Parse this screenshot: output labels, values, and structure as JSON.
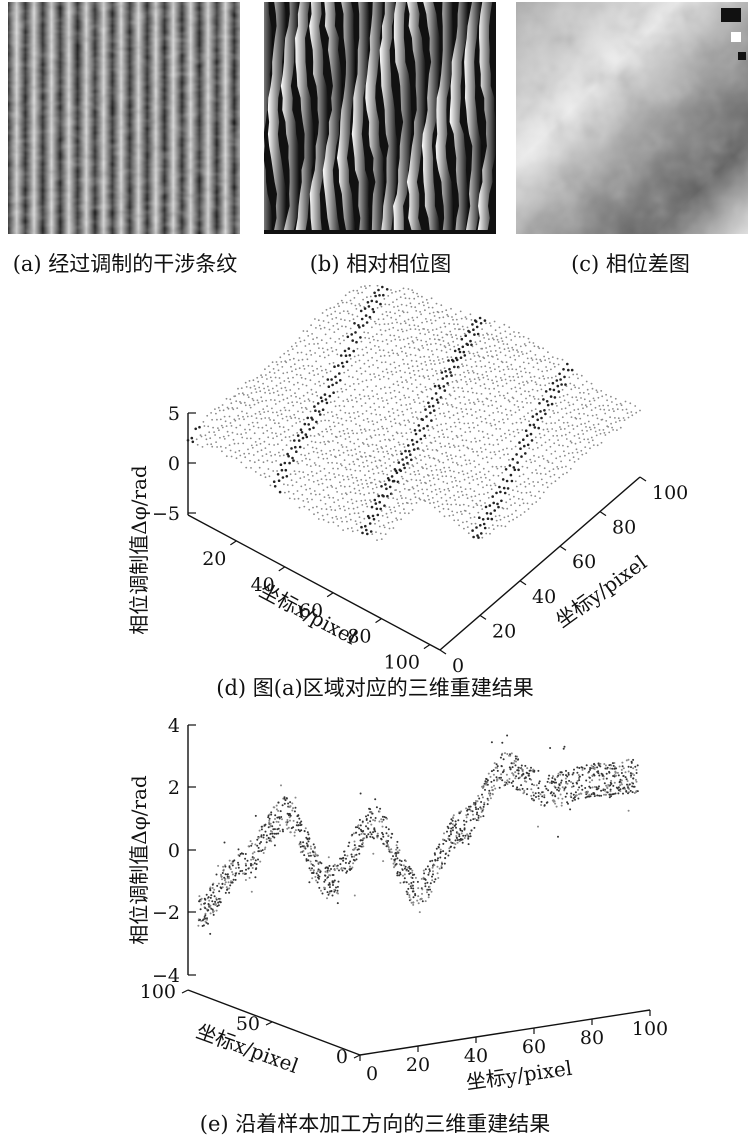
{
  "panels": {
    "a": {
      "caption": "(a) 经过调制的干涉条纹"
    },
    "b": {
      "caption": "(b) 相对相位图"
    },
    "c": {
      "caption": "(c) 相位差图"
    }
  },
  "plot_d": {
    "caption": "(d) 图(a)区域对应的三维重建结果",
    "zlabel": "相位调制值Δφ/rad",
    "xlabel": "坐标x/pixel",
    "ylabel": "坐标y/pixel",
    "z_ticks": [
      "5",
      "0",
      "−5"
    ],
    "x_ticks": [
      "20",
      "40",
      "60",
      "80",
      "100"
    ],
    "y_ticks": [
      "0",
      "20",
      "40",
      "60",
      "80",
      "100"
    ]
  },
  "plot_e": {
    "caption": "(e) 沿着样本加工方向的三维重建结果",
    "zlabel": "相位调制值Δφ/rad",
    "xlabel": "坐标x/pixel",
    "ylabel": "坐标y/pixel",
    "z_ticks": [
      "4",
      "2",
      "0",
      "−2",
      "−4"
    ],
    "x_ticks": [
      "100",
      "50",
      "0"
    ],
    "y_ticks": [
      "0",
      "20",
      "40",
      "60",
      "80",
      "100"
    ]
  },
  "chart_data": [
    {
      "type": "scatter",
      "panel": "d",
      "zlabel": "相位调制值Δφ/rad",
      "xlabel": "坐标x/pixel",
      "ylabel": "坐标y/pixel",
      "zlim": [
        -5,
        5
      ],
      "xlim": [
        0,
        100
      ],
      "ylim": [
        0,
        100
      ]
    },
    {
      "type": "scatter",
      "panel": "e",
      "zlabel": "相位调制值Δφ/rad",
      "xlabel": "坐标x/pixel",
      "ylabel": "坐标y/pixel",
      "zlim": [
        -4,
        4
      ],
      "xlim": [
        0,
        100
      ],
      "ylim": [
        0,
        100
      ],
      "y": [
        0,
        10,
        20,
        30,
        40,
        50,
        60,
        70,
        80,
        90,
        100
      ],
      "z": [
        -2,
        -0.5,
        1.1,
        -1.1,
        0.8,
        -1.4,
        0.6,
        2.4,
        1.7,
        2.0,
        2.1
      ]
    }
  ]
}
